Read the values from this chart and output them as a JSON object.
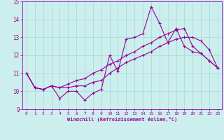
{
  "xlabel": "Windchill (Refroidissement éolien,°C)",
  "bg_color": "#cceeed",
  "grid_color": "#aadddd",
  "line_color": "#990099",
  "spine_color": "#9900aa",
  "xlim": [
    -0.5,
    23.5
  ],
  "ylim": [
    9.0,
    15.0
  ],
  "yticks": [
    9,
    10,
    11,
    12,
    13,
    14,
    15
  ],
  "xticks": [
    0,
    1,
    2,
    3,
    4,
    5,
    6,
    7,
    8,
    9,
    10,
    11,
    12,
    13,
    14,
    15,
    16,
    17,
    18,
    19,
    20,
    21,
    22,
    23
  ],
  "series": [
    [
      11.0,
      10.2,
      10.1,
      10.3,
      9.6,
      10.0,
      10.0,
      9.5,
      9.9,
      10.1,
      12.0,
      11.1,
      12.9,
      13.0,
      13.2,
      14.7,
      13.8,
      12.7,
      13.5,
      12.5,
      12.2,
      12.1,
      11.7,
      11.3
    ],
    [
      11.0,
      10.2,
      10.1,
      10.3,
      10.2,
      10.2,
      10.3,
      10.3,
      10.5,
      10.6,
      11.0,
      11.3,
      11.6,
      11.8,
      12.0,
      12.2,
      12.5,
      12.7,
      12.9,
      13.0,
      13.0,
      12.8,
      12.3,
      11.3
    ],
    [
      11.0,
      10.2,
      10.1,
      10.3,
      10.2,
      10.4,
      10.6,
      10.7,
      11.0,
      11.2,
      11.5,
      11.7,
      12.0,
      12.2,
      12.5,
      12.7,
      13.0,
      13.2,
      13.4,
      13.5,
      12.5,
      12.1,
      11.7,
      11.3
    ]
  ]
}
